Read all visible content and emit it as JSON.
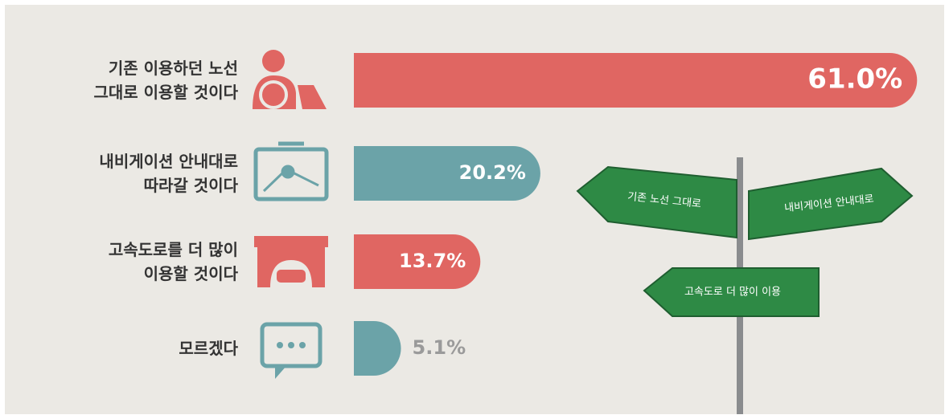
{
  "chart_data": {
    "type": "bar",
    "orientation": "horizontal",
    "categories": [
      "기존 이용하던 노선\n그대로 이용할 것이다",
      "내비게이션 안내대로\n따라갈 것이다",
      "고속도로를 더 많이\n이용할 것이다",
      "모르겠다"
    ],
    "values": [
      61.0,
      20.2,
      13.7,
      5.1
    ],
    "value_labels": [
      "61.0%",
      "20.2%",
      "13.7%",
      "5.1%"
    ],
    "colors": [
      "#e06662",
      "#6ba3a8",
      "#e06662",
      "#6ba3a8"
    ],
    "annotations": [
      "기존 노선 그대로",
      "내비게이션 안내대로",
      "고속도로 더 많이 이용"
    ]
  }
}
